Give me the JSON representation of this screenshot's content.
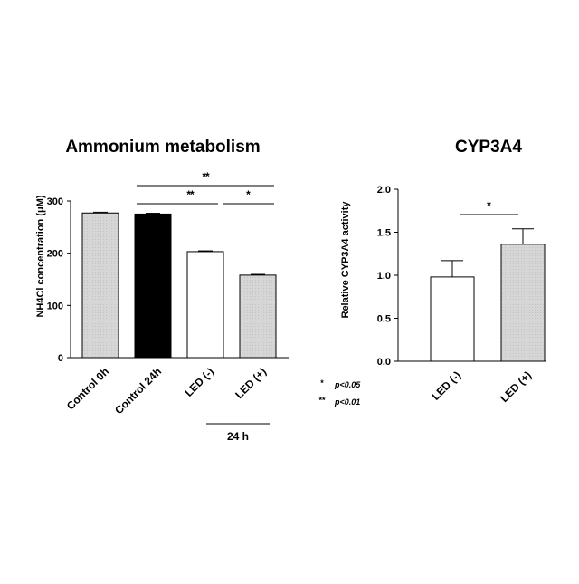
{
  "chart_data": [
    {
      "type": "bar",
      "title": "Ammonium metabolism",
      "ylabel": "NH4Cl concentration (μM)",
      "xlabel": "",
      "ylim": [
        0,
        300
      ],
      "yticks": [
        "0",
        "100",
        "200",
        "300"
      ],
      "categories": [
        "Control 0h",
        "Control 24h",
        "LED (-)",
        "LED (+)"
      ],
      "values": [
        277,
        275,
        203,
        158
      ],
      "errors": [
        1.5,
        1.5,
        1.5,
        1.5
      ],
      "bar_colors": [
        "#d4d4d4",
        "#000000",
        "#ffffff",
        "#d4d4d4"
      ],
      "group_label": "24 h",
      "significance": [
        {
          "from": 1,
          "to": 3,
          "label": "**"
        },
        {
          "from": 1,
          "to": 2,
          "label": "**"
        },
        {
          "from": 2,
          "to": 3,
          "label": "*"
        }
      ]
    },
    {
      "type": "bar",
      "title": "CYP3A4",
      "ylabel": "Relative CYP3A4 activity",
      "xlabel": "",
      "ylim": [
        0,
        2.0
      ],
      "yticks": [
        "0.0",
        "0.5",
        "1.0",
        "1.5",
        "2.0"
      ],
      "categories": [
        "LED (-)",
        "LED (+)"
      ],
      "values": [
        0.98,
        1.36
      ],
      "errors": [
        0.19,
        0.18
      ],
      "bar_colors": [
        "#ffffff",
        "#d4d4d4"
      ],
      "significance": [
        {
          "from": 0,
          "to": 1,
          "label": "*"
        }
      ]
    }
  ],
  "legend": {
    "items": [
      {
        "symbol": "*",
        "text": "p<0.05"
      },
      {
        "symbol": "**",
        "text": "p<0.01"
      }
    ]
  }
}
